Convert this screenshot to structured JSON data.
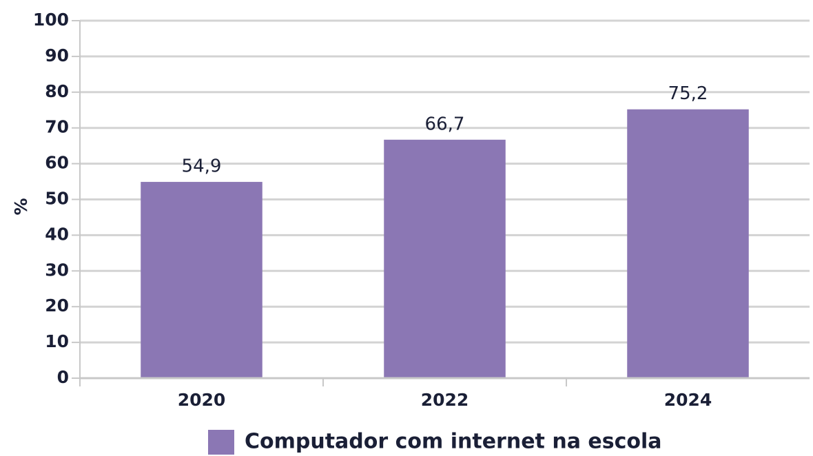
{
  "chart_data": {
    "type": "bar",
    "ylabel": "%",
    "categories": [
      "2020",
      "2022",
      "2024"
    ],
    "series": [
      {
        "name": "Computador com internet na escola",
        "color": "#8b77b4",
        "values": [
          54.9,
          66.7,
          75.2
        ],
        "value_labels": [
          "54,9",
          "66,7",
          "75,2"
        ]
      }
    ],
    "ylim": [
      0,
      100
    ],
    "yticks": [
      0,
      10,
      20,
      30,
      40,
      50,
      60,
      70,
      80,
      90,
      100
    ],
    "grid": true,
    "legend": "bottom"
  }
}
